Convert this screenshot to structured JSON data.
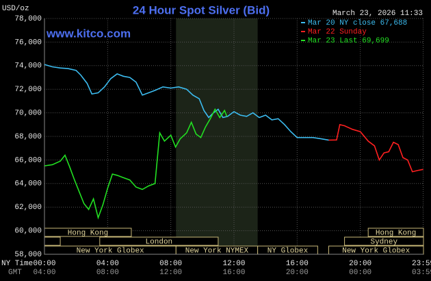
{
  "chart_data": {
    "type": "line",
    "title": "24 Hour Spot Silver (Bid)",
    "y_label": "USD/oz",
    "timestamp": "March 23, 2026 11:33",
    "watermark": "www.kitco.com",
    "x_axis_label": "NY Time",
    "x2_axis_label": "GMT",
    "xlim": [
      0,
      24
    ],
    "ylim": [
      58000,
      78000
    ],
    "grid": true,
    "legend": "top-right",
    "yticks": [
      {
        "value": 58000,
        "label": "58,000"
      },
      {
        "value": 60000,
        "label": "60,000"
      },
      {
        "value": 62000,
        "label": "62,000"
      },
      {
        "value": 64000,
        "label": "64,000"
      },
      {
        "value": 66000,
        "label": "66,000"
      },
      {
        "value": 68000,
        "label": "68,000"
      },
      {
        "value": 70000,
        "label": "70,000"
      },
      {
        "value": 72000,
        "label": "72,000"
      },
      {
        "value": 74000,
        "label": "74,000"
      },
      {
        "value": 76000,
        "label": "76,000"
      },
      {
        "value": 78000,
        "label": "78,000"
      }
    ],
    "xticks": [
      {
        "value": 0,
        "label": "00:00"
      },
      {
        "value": 4,
        "label": "04:00"
      },
      {
        "value": 8,
        "label": "08:00"
      },
      {
        "value": 12,
        "label": "12:00"
      },
      {
        "value": 16,
        "label": "16:00"
      },
      {
        "value": 20,
        "label": "20:00"
      },
      {
        "value": 23.98,
        "label": "23:59"
      }
    ],
    "x2ticks": [
      {
        "value": 0,
        "label": "04:00"
      },
      {
        "value": 4,
        "label": "08:00"
      },
      {
        "value": 8,
        "label": "12:00"
      },
      {
        "value": 12,
        "label": "16:00"
      },
      {
        "value": 16,
        "label": "20:00"
      },
      {
        "value": 20,
        "label": "00:00"
      },
      {
        "value": 23.98,
        "label": "03:59"
      }
    ],
    "shade": [
      8.33,
      13.5
    ],
    "sessions": [
      {
        "label": "Hong Kong",
        "row": 0,
        "start": 0,
        "end": 5.5
      },
      {
        "label": "Hong Kong",
        "row": 0,
        "start": 20.5,
        "end": 24
      },
      {
        "label": null,
        "row": 1,
        "start": 0,
        "end": 1
      },
      {
        "label": "London",
        "row": 1,
        "start": 3.5,
        "end": 11
      },
      {
        "label": "Sydney",
        "row": 1,
        "start": 19,
        "end": 24
      },
      {
        "label": "New York Globex",
        "row": 2,
        "start": 0,
        "end": 8.33
      },
      {
        "label": "New York NYMEX",
        "row": 2,
        "start": 8.33,
        "end": 13.5
      },
      {
        "label": "NY Globex",
        "row": 2,
        "start": 13.5,
        "end": 17.3
      },
      {
        "label": "New York Globex",
        "row": 2,
        "start": 18,
        "end": 24
      }
    ],
    "series": [
      {
        "name": "Mar 20 NY close 67,688",
        "color": "#3cbcf0",
        "x": [
          0,
          0.5,
          1,
          1.5,
          2,
          2.3,
          2.7,
          3,
          3.4,
          3.8,
          4.2,
          4.6,
          5,
          5.4,
          5.8,
          6.2,
          6.6,
          7,
          7.5,
          8,
          8.5,
          9,
          9.4,
          9.8,
          10.1,
          10.4,
          10.7,
          11,
          11.3,
          11.6,
          12,
          12.4,
          12.8,
          13.2,
          13.6,
          14,
          14.4,
          14.8,
          15.2,
          15.6,
          16,
          16.5,
          17,
          17.5,
          18
        ],
        "values": [
          74100,
          73900,
          73800,
          73750,
          73600,
          73200,
          72500,
          71600,
          71700,
          72200,
          72900,
          73300,
          73100,
          73000,
          72600,
          71500,
          71700,
          71900,
          72200,
          72100,
          72200,
          72000,
          71500,
          71200,
          70200,
          69600,
          70000,
          70300,
          69600,
          69700,
          70100,
          69800,
          69700,
          70000,
          69600,
          69800,
          69400,
          69500,
          69000,
          68400,
          67900,
          67900,
          67900,
          67800,
          67688
        ]
      },
      {
        "name": "Mar 22 Sunday",
        "color": "#ff2020",
        "x": [
          18,
          18.5,
          18.7,
          19,
          19.5,
          20,
          20.5,
          20.9,
          21.2,
          21.5,
          21.8,
          22.1,
          22.4,
          22.7,
          23,
          23.3,
          23.6,
          23.98
        ],
        "values": [
          67688,
          67700,
          69000,
          68900,
          68600,
          68400,
          67600,
          67200,
          66000,
          66600,
          66700,
          67500,
          67300,
          66200,
          66000,
          65000,
          65100,
          65200
        ]
      },
      {
        "name": "Mar 23 Last 69,699",
        "color": "#22e022",
        "x": [
          0,
          0.5,
          1,
          1.3,
          1.6,
          1.9,
          2.2,
          2.5,
          2.8,
          3.1,
          3.4,
          3.7,
          4,
          4.3,
          4.6,
          5,
          5.4,
          5.8,
          6.2,
          6.6,
          7,
          7.3,
          7.6,
          8,
          8.3,
          8.6,
          9,
          9.3,
          9.6,
          9.9,
          10.2,
          10.5,
          10.8,
          11.1,
          11.4,
          11.55
        ],
        "values": [
          65500,
          65600,
          65900,
          66400,
          65400,
          64300,
          63300,
          62300,
          61800,
          62700,
          61100,
          62200,
          63600,
          64800,
          64700,
          64500,
          64300,
          63700,
          63500,
          63800,
          64000,
          68300,
          67600,
          68100,
          67100,
          67800,
          68300,
          69200,
          68200,
          67900,
          68800,
          69500,
          70300,
          69600,
          70200,
          69699
        ]
      }
    ]
  }
}
